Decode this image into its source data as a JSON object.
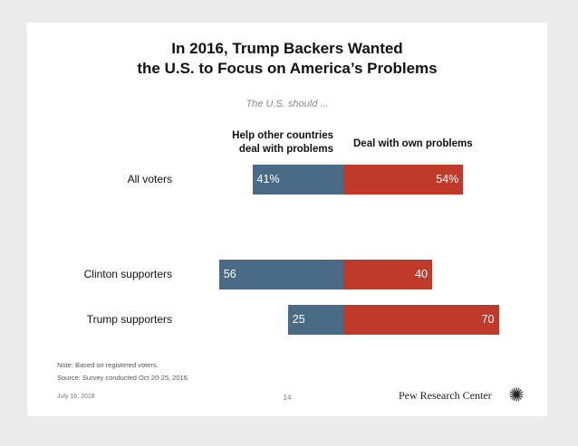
{
  "slide": {
    "title_line1": "In 2016, Trump Backers Wanted",
    "title_line2": "the U.S. to Focus on America’s Problems"
  },
  "chart_data": {
    "type": "bar",
    "orientation": "horizontal-diverging",
    "subtitle": "The U.S. should ...",
    "categories": [
      "All voters",
      "Clinton supporters",
      "Trump supporters"
    ],
    "series": [
      {
        "name": "Help other countries deal with problems",
        "values": [
          41,
          56,
          25
        ],
        "labels": [
          "41%",
          "56",
          "25"
        ],
        "color": "#4a6b87"
      },
      {
        "name": "Deal with own problems",
        "values": [
          54,
          40,
          70
        ],
        "labels": [
          "54%",
          "40",
          "70"
        ],
        "color": "#c0392b"
      }
    ],
    "header_left_line1": "Help other countries",
    "header_left_line2": "deal with problems",
    "header_right": "Deal with own problems"
  },
  "notes": {
    "note": "Note: Based on registered voters.",
    "source": "Source: Survey conducted Oct 20-25, 2016"
  },
  "footer": {
    "date": "July 16, 2018",
    "page": "14",
    "brand": "Pew Research Center"
  }
}
